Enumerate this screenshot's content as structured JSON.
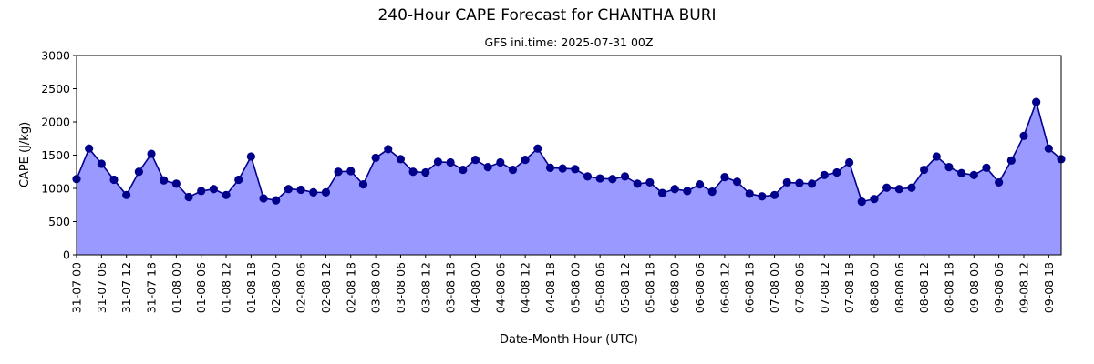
{
  "chart_data": {
    "type": "area",
    "title": "240-Hour CAPE Forecast for CHANTHA BURI",
    "subtitle": "GFS ini.time: 2025-07-31 00Z",
    "xlabel": "Date-Month Hour (UTC)",
    "ylabel": "CAPE (J/kg)",
    "ylim": [
      0,
      3000
    ],
    "yticks": [
      0,
      500,
      1000,
      1500,
      2000,
      2500,
      3000
    ],
    "x_step_hours": 3,
    "xticks": [
      "31-07 00",
      "31-07 06",
      "31-07 12",
      "31-07 18",
      "01-08 00",
      "01-08 06",
      "01-08 12",
      "01-08 18",
      "02-08 00",
      "02-08 06",
      "02-08 12",
      "02-08 18",
      "03-08 00",
      "03-08 06",
      "03-08 12",
      "03-08 18",
      "04-08 00",
      "04-08 06",
      "04-08 12",
      "04-08 18",
      "05-08 00",
      "05-08 06",
      "05-08 12",
      "05-08 18",
      "06-08 00",
      "06-08 06",
      "06-08 12",
      "06-08 18",
      "07-08 00",
      "07-08 06",
      "07-08 12",
      "07-08 18",
      "08-08 00",
      "08-08 06",
      "08-08 12",
      "08-08 18",
      "09-08 00",
      "09-08 06",
      "09-08 12",
      "09-08 18"
    ],
    "values": [
      1140,
      1600,
      1370,
      1130,
      900,
      1250,
      1520,
      1120,
      1070,
      870,
      960,
      990,
      900,
      1130,
      1480,
      850,
      820,
      990,
      980,
      940,
      940,
      1250,
      1260,
      1060,
      1460,
      1590,
      1440,
      1250,
      1240,
      1400,
      1390,
      1280,
      1430,
      1320,
      1390,
      1280,
      1430,
      1600,
      1310,
      1300,
      1290,
      1180,
      1150,
      1140,
      1180,
      1070,
      1090,
      930,
      990,
      960,
      1060,
      950,
      1170,
      1100,
      920,
      880,
      900,
      1090,
      1080,
      1070,
      1200,
      1240,
      1390,
      800,
      840,
      1010,
      990,
      1010,
      1280,
      1480,
      1320,
      1230,
      1200,
      1310,
      1090,
      1420,
      1790,
      2300,
      1600,
      1440
    ],
    "colors": {
      "fill": "#9999ff",
      "line": "#00008b",
      "marker": "#00008b"
    },
    "grid": false
  }
}
